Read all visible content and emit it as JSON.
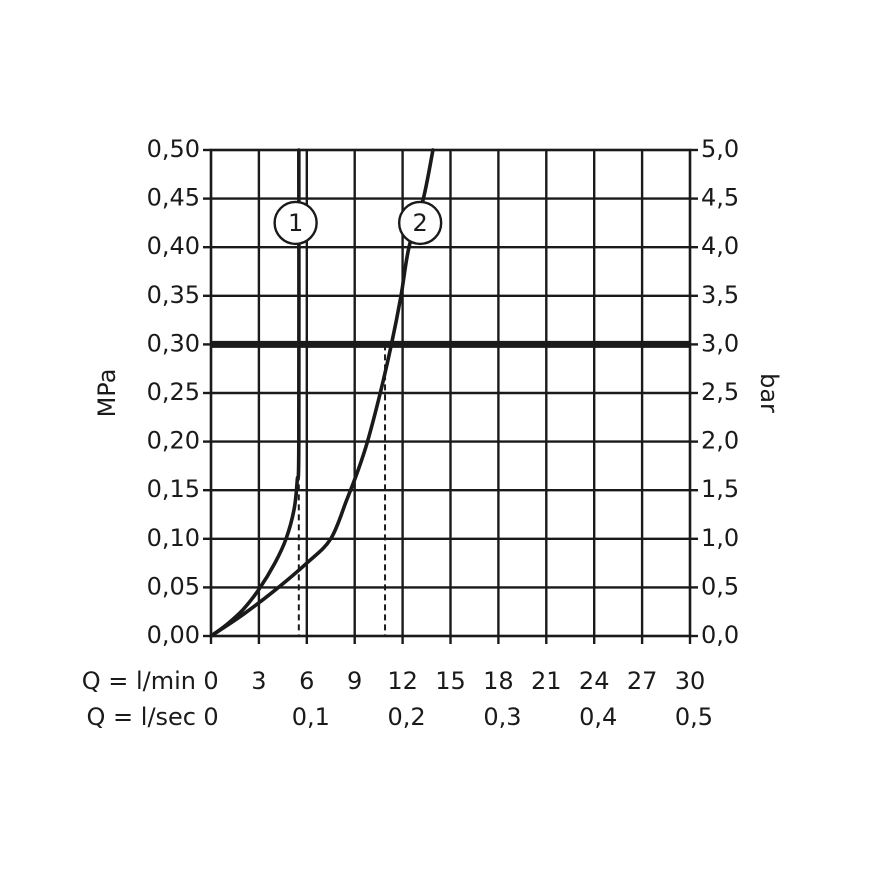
{
  "chart_data": {
    "type": "line",
    "title": "",
    "x_axis": {
      "flow_lmin": {
        "label": "Q = l/min",
        "range": [
          0,
          30
        ],
        "ticks": [
          "0",
          "3",
          "6",
          "9",
          "12",
          "15",
          "18",
          "21",
          "24",
          "27",
          "30"
        ]
      },
      "flow_lsec": {
        "label": "Q = l/sec",
        "ticks": [
          {
            "value": 0,
            "label": "0"
          },
          {
            "value": 6,
            "label": "0,1"
          },
          {
            "value": 12,
            "label": "0,2"
          },
          {
            "value": 18,
            "label": "0,3"
          },
          {
            "value": 24,
            "label": "0,4"
          },
          {
            "value": 30,
            "label": "0,5"
          }
        ]
      }
    },
    "y_axis_left": {
      "label": "MPa",
      "range": [
        0,
        0.5
      ],
      "ticks": [
        "0,00",
        "0,05",
        "0,10",
        "0,15",
        "0,20",
        "0,25",
        "0,30",
        "0,35",
        "0,40",
        "0,45",
        "0,50"
      ]
    },
    "y_axis_right": {
      "label": "bar",
      "range": [
        0,
        5
      ],
      "ticks": [
        "0,0",
        "0,5",
        "1,0",
        "1,5",
        "2,0",
        "2,5",
        "3,0",
        "3,5",
        "4,0",
        "4,5",
        "5,0"
      ]
    },
    "grid": true,
    "reference_line": {
      "y": 0.3
    },
    "series": [
      {
        "marker_label": "1",
        "marker_at": {
          "x": 5.3,
          "y": 0.425
        },
        "points": [
          {
            "x": 0,
            "y": 0
          },
          {
            "x": 1,
            "y": 0.012
          },
          {
            "x": 2,
            "y": 0.027
          },
          {
            "x": 3,
            "y": 0.048
          },
          {
            "x": 4,
            "y": 0.075
          },
          {
            "x": 4.7,
            "y": 0.1
          },
          {
            "x": 5.2,
            "y": 0.13
          },
          {
            "x": 5.4,
            "y": 0.16
          },
          {
            "x": 5.5,
            "y": 0.2
          },
          {
            "x": 5.5,
            "y": 0.5
          }
        ],
        "drop_line_x": 5.5
      },
      {
        "marker_label": "2",
        "marker_at": {
          "x": 13.1,
          "y": 0.425
        },
        "points": [
          {
            "x": 0,
            "y": 0
          },
          {
            "x": 2,
            "y": 0.022
          },
          {
            "x": 4,
            "y": 0.047
          },
          {
            "x": 6,
            "y": 0.075
          },
          {
            "x": 7.5,
            "y": 0.1
          },
          {
            "x": 8.5,
            "y": 0.14
          },
          {
            "x": 9.2,
            "y": 0.17
          },
          {
            "x": 9.8,
            "y": 0.2
          },
          {
            "x": 10.6,
            "y": 0.25
          },
          {
            "x": 11.3,
            "y": 0.3
          },
          {
            "x": 11.9,
            "y": 0.35
          },
          {
            "x": 12.4,
            "y": 0.4
          },
          {
            "x": 13.3,
            "y": 0.45
          },
          {
            "x": 13.9,
            "y": 0.5
          }
        ],
        "drop_line_x": 10.9
      }
    ]
  }
}
